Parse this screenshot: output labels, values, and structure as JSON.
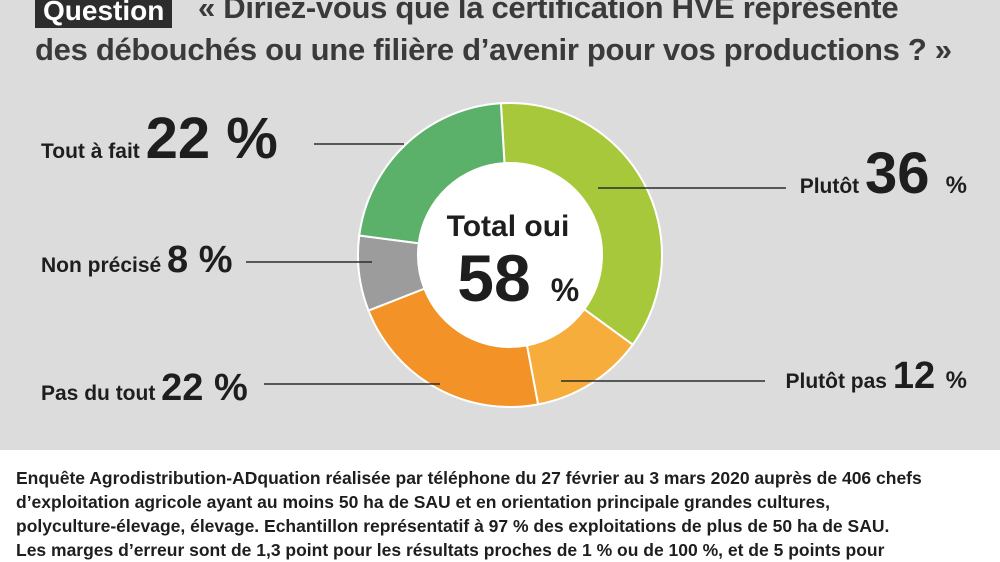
{
  "question": {
    "badge": "Question",
    "line1": "« Diriez-vous que la certification HVE représente",
    "line2": "des débouchés ou une filière d’avenir pour vos productions ? »"
  },
  "chart_data": {
    "type": "pie",
    "slices": [
      {
        "label": "Plutôt",
        "value": 36,
        "color": "#a6c83a"
      },
      {
        "label": "Plutôt pas",
        "value": 12,
        "color": "#f6ad3c"
      },
      {
        "label": "Pas du tout",
        "value": 22,
        "color": "#f29227"
      },
      {
        "label": "Non précisé",
        "value": 8,
        "color": "#9c9c9c"
      },
      {
        "label": "Tout à fait",
        "value": 22,
        "color": "#5cb16a"
      }
    ],
    "center": {
      "label": "Total oui",
      "value": "58",
      "unit": "%"
    },
    "unit": "%"
  },
  "footnote": {
    "lines": [
      "Enquête Agrodistribution-ADquation réalisée par téléphone du 27 février au 3 mars 2020 auprès de 406 chefs",
      "d’exploitation agricole ayant au moins 50 ha de SAU et en orientation principale grandes cultures,",
      "polyculture-élevage, élevage. Echantillon représentatif à 97 % des exploitations de plus de 50 ha de SAU.",
      "Les marges d’erreur sont de 1,3 point pour les résultats proches de 1 % ou de 100 %, et de 5 points pour"
    ]
  }
}
